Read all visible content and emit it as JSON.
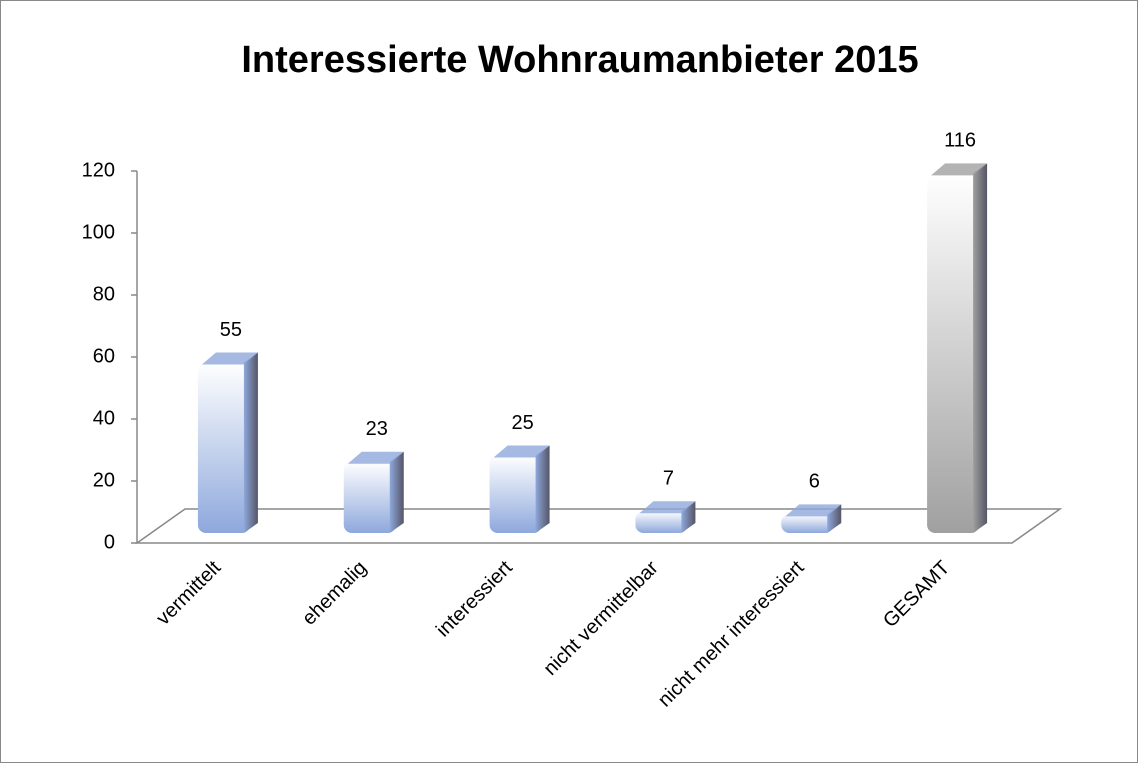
{
  "chart_data": {
    "type": "bar3d",
    "title": "Interessierte Wohnraumanbieter 2015",
    "categories": [
      "vermittelt",
      "ehemalig",
      "interessiert",
      "nicht vermittelbar",
      "nicht mehr interessiert",
      "GESAMT"
    ],
    "values": [
      55,
      23,
      25,
      7,
      6,
      116
    ],
    "colors": [
      "#8ea8dc",
      "#8ea8dc",
      "#8ea8dc",
      "#8ea8dc",
      "#8ea8dc",
      "#a0a0a0"
    ],
    "ylim": [
      0,
      120
    ],
    "yticks": [
      0,
      20,
      40,
      60,
      80,
      100,
      120
    ],
    "grid": false
  }
}
